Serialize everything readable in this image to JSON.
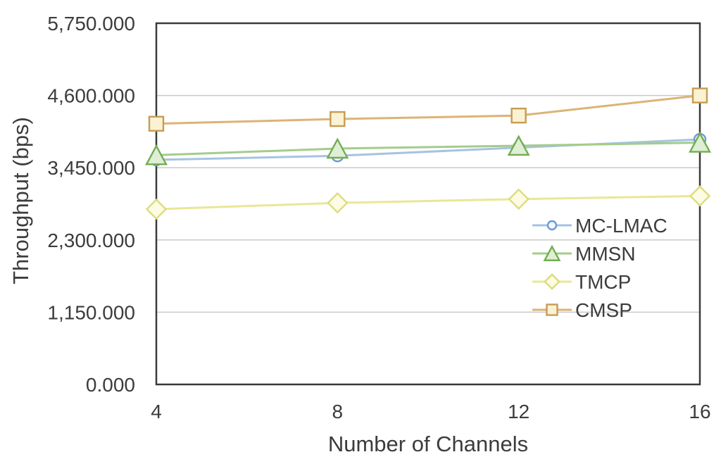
{
  "chart_data": {
    "type": "line",
    "title": "",
    "xlabel": "Number of Channels",
    "ylabel": "Throughput (bps)",
    "x_categories": [
      "4",
      "8",
      "12",
      "16"
    ],
    "ylim": [
      0,
      5750
    ],
    "grid": "horizontal",
    "plot_border": "full-box",
    "legend_position": "inside-bottom-right",
    "y_ticks": [
      {
        "value": 0,
        "label": "0.000"
      },
      {
        "value": 1150,
        "label": "1,150.000"
      },
      {
        "value": 2300,
        "label": "2,300.000"
      },
      {
        "value": 3450,
        "label": "3,450.000"
      },
      {
        "value": 4600,
        "label": "4,600.000"
      },
      {
        "value": 5750,
        "label": "5,750.000"
      }
    ],
    "series": [
      {
        "name": "MC-LMAC",
        "marker": "circle",
        "values": [
          3575,
          3640,
          3770,
          3900
        ],
        "line_color": "#a5c3e3",
        "marker_stroke": "#6e9bd2",
        "marker_fill": "#f4f8fc"
      },
      {
        "name": "MMSN",
        "marker": "triangle",
        "values": [
          3650,
          3755,
          3800,
          3850
        ],
        "line_color": "#a4cc8b",
        "marker_stroke": "#73ad52",
        "marker_fill": "#dfeed4"
      },
      {
        "name": "TMCP",
        "marker": "diamond",
        "values": [
          2790,
          2890,
          2950,
          3000
        ],
        "line_color": "#e9e795",
        "marker_stroke": "#dedb7c",
        "marker_fill": "#fcfce4"
      },
      {
        "name": "CMSP",
        "marker": "square",
        "values": [
          4150,
          4225,
          4280,
          4600
        ],
        "line_color": "#dcb377",
        "marker_stroke": "#c69c53",
        "marker_fill": "#fbf2d3"
      }
    ],
    "colors": {
      "text": "#3c3c3c",
      "axis_border": "#3a3a3a",
      "gridline": "#c9c9c9",
      "background": "#ffffff"
    }
  }
}
